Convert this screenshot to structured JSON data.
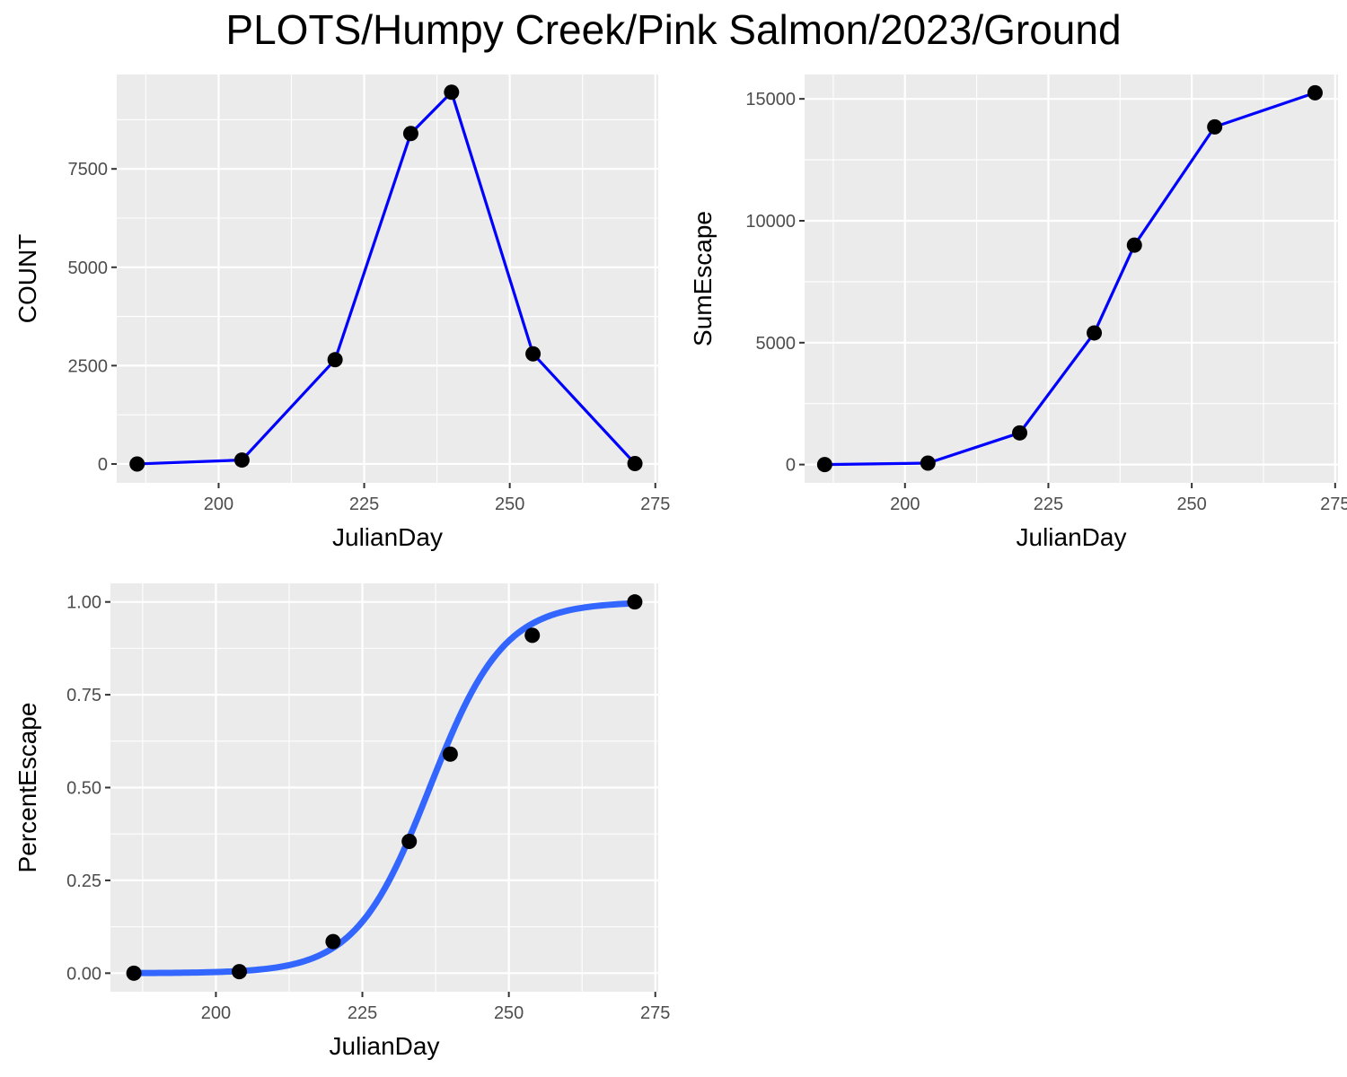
{
  "page_title": "PLOTS/Humpy Creek/Pink Salmon/2023/Ground",
  "colors": {
    "panel_bg": "#ebebeb",
    "grid": "#ffffff",
    "line": "#0000ff",
    "smooth": "#3366ff",
    "point": "#000000",
    "tick_text": "#4d4d4d",
    "tick_mark": "#333333"
  },
  "chart_data": [
    {
      "id": "count",
      "type": "line",
      "xlabel": "JulianDay",
      "ylabel": "COUNT",
      "xlim": [
        182.5,
        275.5
      ],
      "ylim": [
        -480,
        9900
      ],
      "xticks": [
        200,
        225,
        250,
        275
      ],
      "xtick_labels": [
        "200",
        "225",
        "250",
        "275"
      ],
      "yticks": [
        0,
        2500,
        5000,
        7500
      ],
      "ytick_labels": [
        "0",
        "2500",
        "5000",
        "7500"
      ],
      "grid": true,
      "series": [
        {
          "x": [
            186,
            204,
            220,
            233,
            240,
            254,
            271.5
          ],
          "y": [
            0,
            100,
            2650,
            8400,
            9450,
            2800,
            10
          ],
          "style": "line+points"
        }
      ]
    },
    {
      "id": "sumescape",
      "type": "line",
      "xlabel": "JulianDay",
      "ylabel": "SumEscape",
      "xlim": [
        182.5,
        275.5
      ],
      "ylim": [
        -750,
        16000
      ],
      "xticks": [
        200,
        225,
        250,
        275
      ],
      "xtick_labels": [
        "200",
        "225",
        "250",
        "275"
      ],
      "yticks": [
        0,
        5000,
        10000,
        15000
      ],
      "ytick_labels": [
        "0",
        "5000",
        "10000",
        "15000"
      ],
      "grid": true,
      "series": [
        {
          "x": [
            186,
            204,
            220,
            233,
            240,
            254,
            271.5
          ],
          "y": [
            0,
            60,
            1300,
            5400,
            9000,
            13850,
            15250
          ],
          "style": "line+points"
        }
      ]
    },
    {
      "id": "percentescape",
      "type": "scatter",
      "xlabel": "JulianDay",
      "ylabel": "PercentEscape",
      "xlim": [
        182.0,
        275.5
      ],
      "ylim": [
        -0.05,
        1.05
      ],
      "xticks": [
        200,
        225,
        250,
        275
      ],
      "xtick_labels": [
        "200",
        "225",
        "250",
        "275"
      ],
      "yticks": [
        0.0,
        0.25,
        0.5,
        0.75,
        1.0
      ],
      "ytick_labels": [
        "0.00",
        "0.25",
        "0.50",
        "0.75",
        "1.00"
      ],
      "grid": true,
      "series": [
        {
          "x": [
            186,
            204,
            220,
            233,
            240,
            254,
            271.5
          ],
          "y": [
            0.0,
            0.004,
            0.085,
            0.355,
            0.59,
            0.91,
            1.0
          ],
          "style": "points"
        }
      ],
      "fit": {
        "type": "logistic",
        "midpoint": 236.5,
        "scale": 6.3,
        "x_range": [
          186,
          271.5
        ]
      }
    }
  ]
}
